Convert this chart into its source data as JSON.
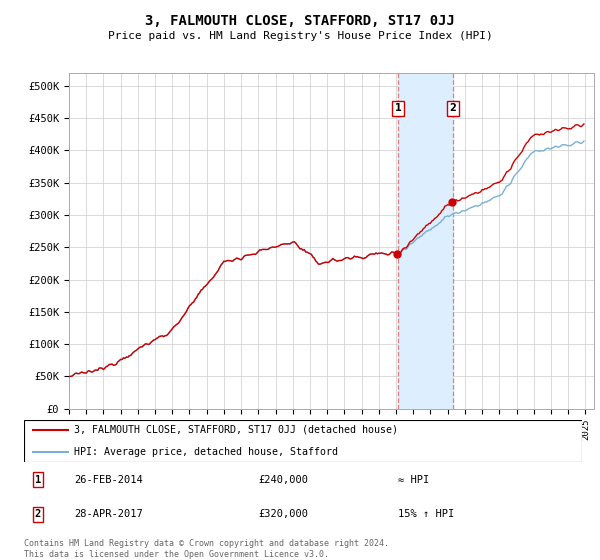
{
  "title": "3, FALMOUTH CLOSE, STAFFORD, ST17 0JJ",
  "subtitle": "Price paid vs. HM Land Registry's House Price Index (HPI)",
  "hpi_line_color": "#7ab0d4",
  "sale_color": "#cc0000",
  "sale1_date": "26-FEB-2014",
  "sale1_price": 240000,
  "sale1_year": 2014.12,
  "sale1_label": "≈ HPI",
  "sale2_date": "28-APR-2017",
  "sale2_price": 320000,
  "sale2_year": 2017.29,
  "sale2_label": "15% ↑ HPI",
  "ylabel_ticks": [
    0,
    50000,
    100000,
    150000,
    200000,
    250000,
    300000,
    350000,
    400000,
    450000,
    500000
  ],
  "ylabel_labels": [
    "£0",
    "£50K",
    "£100K",
    "£150K",
    "£200K",
    "£250K",
    "£300K",
    "£350K",
    "£400K",
    "£450K",
    "£500K"
  ],
  "ylim": [
    0,
    520000
  ],
  "xlim_start": 1995,
  "xlim_end": 2025.5,
  "span_color": "#ddeeff",
  "vline_color": "#e08080",
  "footer": "Contains HM Land Registry data © Crown copyright and database right 2024.\nThis data is licensed under the Open Government Licence v3.0.",
  "legend_line1": "3, FALMOUTH CLOSE, STAFFORD, ST17 0JJ (detached house)",
  "legend_line2": "HPI: Average price, detached house, Stafford",
  "box_edgecolor": "#cc0000"
}
